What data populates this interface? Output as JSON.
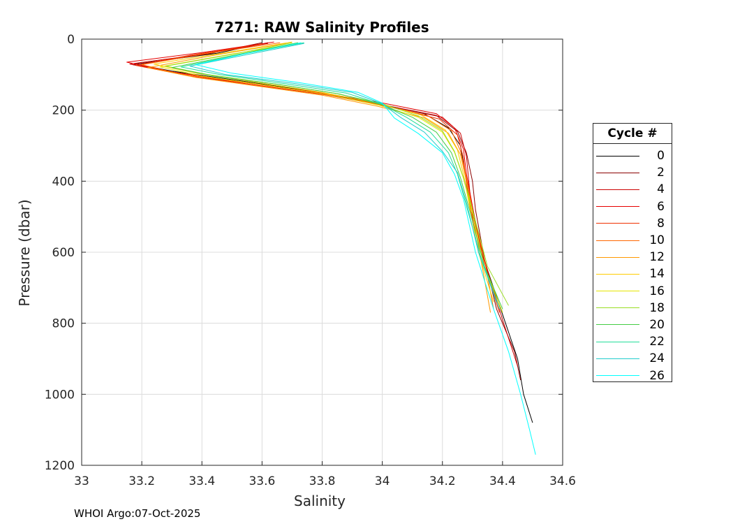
{
  "chart_data": {
    "type": "line",
    "title": "7271: RAW Salinity Profiles",
    "xlabel": "Salinity",
    "ylabel": "Pressure (dbar)",
    "xlim": [
      33,
      34.6
    ],
    "ylim": [
      1200,
      0
    ],
    "xticks": [
      33,
      33.2,
      33.4,
      33.6,
      33.8,
      34,
      34.2,
      34.4,
      34.6
    ],
    "xtick_labels": [
      "33",
      "33.2",
      "33.4",
      "33.6",
      "33.8",
      "34",
      "34.2",
      "34.4",
      "34.6"
    ],
    "yticks": [
      0,
      200,
      400,
      600,
      800,
      1000,
      1200
    ],
    "ytick_labels": [
      "0",
      "200",
      "400",
      "600",
      "800",
      "1000",
      "1200"
    ],
    "grid": true,
    "legend": {
      "title": "Cycle #",
      "placement": "right",
      "entries": [
        {
          "label": "0",
          "color": "#000000"
        },
        {
          "label": "2",
          "color": "#8b0000"
        },
        {
          "label": "4",
          "color": "#cc0000"
        },
        {
          "label": "6",
          "color": "#e60000"
        },
        {
          "label": "8",
          "color": "#f03000"
        },
        {
          "label": "10",
          "color": "#ff6600"
        },
        {
          "label": "12",
          "color": "#ff9900"
        },
        {
          "label": "14",
          "color": "#ffcc00"
        },
        {
          "label": "16",
          "color": "#e6e600"
        },
        {
          "label": "18",
          "color": "#99dd22"
        },
        {
          "label": "20",
          "color": "#44cc44"
        },
        {
          "label": "22",
          "color": "#22dd99"
        },
        {
          "label": "24",
          "color": "#22cccc"
        },
        {
          "label": "26",
          "color": "#00ffff"
        }
      ]
    },
    "series": [
      {
        "name": "0",
        "color": "#000000",
        "points": [
          [
            33.62,
            10
          ],
          [
            33.45,
            40
          ],
          [
            33.18,
            70
          ],
          [
            33.3,
            90
          ],
          [
            33.55,
            120
          ],
          [
            33.75,
            145
          ],
          [
            33.95,
            175
          ],
          [
            34.14,
            210
          ],
          [
            34.22,
            250
          ],
          [
            34.26,
            300
          ],
          [
            34.27,
            350
          ],
          [
            34.29,
            450
          ],
          [
            34.33,
            600
          ],
          [
            34.39,
            750
          ],
          [
            34.45,
            900
          ],
          [
            34.47,
            1000
          ],
          [
            34.5,
            1080
          ]
        ]
      },
      {
        "name": "2",
        "color": "#8b0000",
        "points": [
          [
            33.6,
            10
          ],
          [
            33.42,
            42
          ],
          [
            33.17,
            72
          ],
          [
            33.32,
            95
          ],
          [
            33.57,
            125
          ],
          [
            33.78,
            150
          ],
          [
            33.97,
            180
          ],
          [
            34.18,
            215
          ],
          [
            34.25,
            260
          ],
          [
            34.28,
            320
          ],
          [
            34.3,
            400
          ],
          [
            34.31,
            480
          ],
          [
            34.34,
            620
          ],
          [
            34.38,
            760
          ],
          [
            34.44,
            880
          ],
          [
            34.46,
            960
          ]
        ]
      },
      {
        "name": "4",
        "color": "#cc0000",
        "points": [
          [
            33.62,
            12
          ],
          [
            33.38,
            45
          ],
          [
            33.16,
            70
          ],
          [
            33.35,
            100
          ],
          [
            33.58,
            130
          ],
          [
            33.8,
            155
          ],
          [
            34.0,
            185
          ],
          [
            34.2,
            220
          ],
          [
            34.26,
            265
          ],
          [
            34.28,
            330
          ],
          [
            34.29,
            420
          ],
          [
            34.3,
            500
          ],
          [
            34.35,
            650
          ],
          [
            34.4,
            790
          ],
          [
            34.45,
            920
          ]
        ]
      },
      {
        "name": "6",
        "color": "#e60000",
        "points": [
          [
            33.64,
            8
          ],
          [
            33.4,
            38
          ],
          [
            33.15,
            65
          ],
          [
            33.3,
            92
          ],
          [
            33.54,
            122
          ],
          [
            33.77,
            148
          ],
          [
            33.99,
            178
          ],
          [
            34.18,
            210
          ],
          [
            34.24,
            250
          ],
          [
            34.27,
            310
          ],
          [
            34.28,
            380
          ],
          [
            34.3,
            470
          ],
          [
            34.33,
            600
          ],
          [
            34.38,
            740
          ]
        ]
      },
      {
        "name": "8",
        "color": "#f03000",
        "points": [
          [
            33.6,
            14
          ],
          [
            33.37,
            44
          ],
          [
            33.18,
            74
          ],
          [
            33.36,
            104
          ],
          [
            33.6,
            132
          ],
          [
            33.82,
            158
          ],
          [
            34.02,
            190
          ],
          [
            34.19,
            225
          ],
          [
            34.25,
            270
          ],
          [
            34.27,
            335
          ],
          [
            34.28,
            410
          ],
          [
            34.3,
            510
          ],
          [
            34.34,
            640
          ],
          [
            34.39,
            770
          ]
        ]
      },
      {
        "name": "10",
        "color": "#ff6600",
        "points": [
          [
            33.66,
            10
          ],
          [
            33.42,
            40
          ],
          [
            33.2,
            72
          ],
          [
            33.33,
            98
          ],
          [
            33.57,
            126
          ],
          [
            33.79,
            152
          ],
          [
            33.98,
            182
          ],
          [
            34.15,
            215
          ],
          [
            34.23,
            258
          ],
          [
            34.26,
            315
          ],
          [
            34.28,
            390
          ],
          [
            34.3,
            480
          ],
          [
            34.34,
            620
          ],
          [
            34.37,
            760
          ]
        ]
      },
      {
        "name": "12",
        "color": "#ff9900",
        "points": [
          [
            33.68,
            12
          ],
          [
            33.45,
            44
          ],
          [
            33.22,
            80
          ],
          [
            33.38,
            108
          ],
          [
            33.6,
            134
          ],
          [
            33.8,
            158
          ],
          [
            33.98,
            188
          ],
          [
            34.14,
            222
          ],
          [
            34.22,
            265
          ],
          [
            34.26,
            325
          ],
          [
            34.28,
            400
          ],
          [
            34.3,
            490
          ],
          [
            34.33,
            630
          ],
          [
            34.36,
            770
          ]
        ]
      },
      {
        "name": "14",
        "color": "#ffcc00",
        "points": [
          [
            33.7,
            8
          ],
          [
            33.48,
            38
          ],
          [
            33.24,
            70
          ],
          [
            33.38,
            96
          ],
          [
            33.6,
            124
          ],
          [
            33.8,
            150
          ],
          [
            33.98,
            180
          ],
          [
            34.13,
            214
          ],
          [
            34.21,
            256
          ],
          [
            34.25,
            312
          ],
          [
            34.27,
            380
          ],
          [
            34.29,
            470
          ],
          [
            34.32,
            600
          ],
          [
            34.37,
            740
          ]
        ]
      },
      {
        "name": "16",
        "color": "#e6e600",
        "points": [
          [
            33.72,
            12
          ],
          [
            33.5,
            42
          ],
          [
            33.26,
            78
          ],
          [
            33.4,
            104
          ],
          [
            33.62,
            130
          ],
          [
            33.82,
            156
          ],
          [
            33.99,
            186
          ],
          [
            34.12,
            220
          ],
          [
            34.2,
            262
          ],
          [
            34.24,
            318
          ],
          [
            34.27,
            392
          ],
          [
            34.3,
            490
          ],
          [
            34.34,
            640
          ],
          [
            34.4,
            770
          ]
        ]
      },
      {
        "name": "18",
        "color": "#99dd22",
        "points": [
          [
            33.7,
            10
          ],
          [
            33.52,
            40
          ],
          [
            33.28,
            76
          ],
          [
            33.42,
            100
          ],
          [
            33.64,
            126
          ],
          [
            33.84,
            152
          ],
          [
            34.0,
            182
          ],
          [
            34.12,
            216
          ],
          [
            34.2,
            258
          ],
          [
            34.24,
            316
          ],
          [
            34.27,
            390
          ],
          [
            34.3,
            480
          ],
          [
            34.35,
            640
          ],
          [
            34.42,
            750
          ]
        ]
      },
      {
        "name": "20",
        "color": "#44cc44",
        "points": [
          [
            33.72,
            10
          ],
          [
            33.54,
            40
          ],
          [
            33.3,
            80
          ],
          [
            33.44,
            104
          ],
          [
            33.66,
            128
          ],
          [
            33.86,
            155
          ],
          [
            34.0,
            185
          ],
          [
            34.1,
            220
          ],
          [
            34.18,
            262
          ],
          [
            34.23,
            320
          ],
          [
            34.26,
            390
          ],
          [
            34.29,
            480
          ],
          [
            34.34,
            640
          ],
          [
            34.4,
            760
          ]
        ]
      },
      {
        "name": "22",
        "color": "#22dd99",
        "points": [
          [
            33.74,
            10
          ],
          [
            33.55,
            40
          ],
          [
            33.33,
            78
          ],
          [
            33.46,
            100
          ],
          [
            33.68,
            126
          ],
          [
            33.88,
            152
          ],
          [
            34.0,
            184
          ],
          [
            34.08,
            220
          ],
          [
            34.16,
            262
          ],
          [
            34.22,
            320
          ],
          [
            34.25,
            380
          ],
          [
            34.28,
            470
          ],
          [
            34.33,
            620
          ],
          [
            34.39,
            760
          ]
        ]
      },
      {
        "name": "24",
        "color": "#22cccc",
        "points": [
          [
            33.74,
            12
          ],
          [
            33.56,
            42
          ],
          [
            33.36,
            76
          ],
          [
            33.48,
            100
          ],
          [
            33.7,
            124
          ],
          [
            33.9,
            150
          ],
          [
            34.0,
            182
          ],
          [
            34.06,
            220
          ],
          [
            34.14,
            262
          ],
          [
            34.2,
            316
          ],
          [
            34.25,
            376
          ],
          [
            34.28,
            460
          ],
          [
            34.32,
            600
          ],
          [
            34.38,
            740
          ]
        ]
      },
      {
        "name": "26",
        "color": "#00ffff",
        "points": [
          [
            33.73,
            10
          ],
          [
            33.55,
            40
          ],
          [
            33.38,
            72
          ],
          [
            33.5,
            96
          ],
          [
            33.72,
            122
          ],
          [
            33.92,
            150
          ],
          [
            34.0,
            180
          ],
          [
            34.04,
            222
          ],
          [
            34.12,
            266
          ],
          [
            34.2,
            320
          ],
          [
            34.24,
            380
          ],
          [
            34.27,
            450
          ],
          [
            34.31,
            600
          ],
          [
            34.37,
            760
          ],
          [
            34.42,
            880
          ],
          [
            34.46,
            1000
          ],
          [
            34.49,
            1100
          ],
          [
            34.51,
            1170
          ]
        ]
      }
    ]
  },
  "footer": {
    "note": "WHOI Argo:07-Oct-2025"
  }
}
